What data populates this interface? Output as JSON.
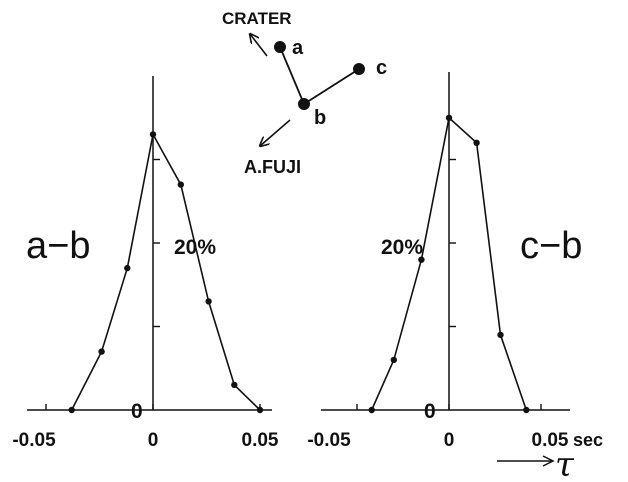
{
  "chart_data": [
    {
      "type": "line",
      "panel_label": "a−b",
      "percent_label": "20%",
      "zero_label": "0",
      "x": [
        -0.038,
        -0.024,
        -0.012,
        0.0,
        0.013,
        0.026,
        0.038,
        0.05
      ],
      "y": [
        0,
        7,
        17,
        33,
        27,
        13,
        3,
        0
      ],
      "x_ticks": [
        -0.05,
        0,
        0.05
      ],
      "x_tick_labels": [
        "-0.05",
        "0",
        "0.05"
      ],
      "y_ticks": [
        10,
        20,
        30
      ],
      "xlim": [
        -0.063,
        0.058
      ],
      "ylim": [
        0,
        40
      ]
    },
    {
      "type": "line",
      "panel_label": "c−b",
      "percent_label": "20%",
      "zero_label": "0",
      "x": [
        -0.042,
        -0.03,
        -0.015,
        0.0,
        0.015,
        0.028,
        0.042
      ],
      "y": [
        0,
        6,
        18,
        35,
        32,
        9,
        0
      ],
      "x_ticks": [
        -0.05,
        0,
        0.05
      ],
      "x_tick_labels": [
        "-0.05",
        "0",
        "0.05"
      ],
      "y_ticks": [
        10,
        20,
        30
      ],
      "xlim": [
        -0.06,
        0.06
      ],
      "ylim": [
        0,
        40
      ],
      "unit_label": "sec",
      "axis_symbol": "τ"
    }
  ],
  "station_map": {
    "stations": [
      {
        "name": "a",
        "label": "a"
      },
      {
        "name": "b",
        "label": "b"
      },
      {
        "name": "c",
        "label": "c"
      }
    ],
    "direction_crater": "CRATER",
    "direction_fuji": "A.FUJI"
  },
  "colors": {
    "ink": "#111111",
    "background": "#ffffff"
  }
}
